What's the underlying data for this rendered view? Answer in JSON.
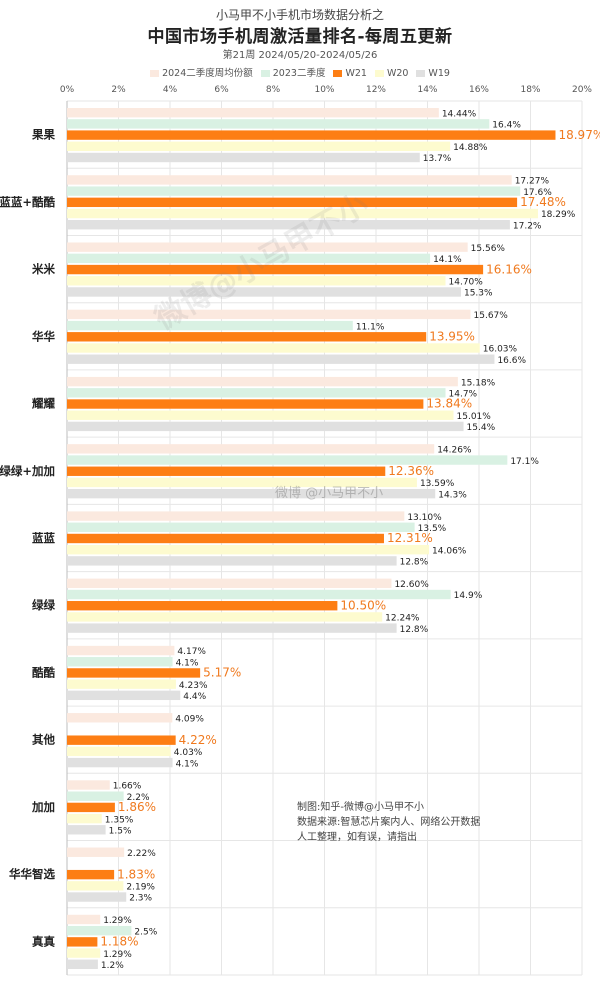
{
  "header": {
    "subtitle": "小马甲不小手机市场数据分析之",
    "title": "中国市场手机周激活量排名-每周五更新",
    "date_range": "第21周 2024/05/20-2024/05/26"
  },
  "chart_data": {
    "type": "bar",
    "orientation": "horizontal",
    "xlim": [
      0,
      20
    ],
    "x_ticks": [
      "0%",
      "2%",
      "4%",
      "6%",
      "8%",
      "10%",
      "12%",
      "14%",
      "16%",
      "18%",
      "20%"
    ],
    "grid": true,
    "legend_position": "top",
    "categories": [
      "果果",
      "蓝蓝+酷酷",
      "米米",
      "华华",
      "耀耀",
      "绿绿+加加",
      "蓝蓝",
      "绿绿",
      "酷酷",
      "其他",
      "加加",
      "华华智选",
      "真真"
    ],
    "series": [
      {
        "name": "2024二季度周均份额",
        "color": "#fbe9df",
        "values": [
          14.44,
          17.27,
          15.56,
          15.67,
          15.18,
          14.26,
          13.1,
          12.6,
          4.17,
          4.09,
          1.66,
          2.22,
          1.29
        ],
        "labels": [
          "14.44%",
          "17.27%",
          "15.56%",
          "15.67%",
          "15.18%",
          "14.26%",
          "13.10%",
          "12.60%",
          "4.17%",
          "4.09%",
          "1.66%",
          "2.22%",
          "1.29%"
        ]
      },
      {
        "name": "2023二季度",
        "color": "#d9f1e3",
        "values": [
          16.4,
          17.6,
          14.1,
          11.1,
          14.7,
          17.1,
          13.5,
          14.9,
          4.1,
          null,
          2.2,
          null,
          2.5
        ],
        "labels": [
          "16.4%",
          "17.6%",
          "14.1%",
          "11.1%",
          "14.7%",
          "17.1%",
          "13.5%",
          "14.9%",
          "4.1%",
          "",
          "2.2%",
          "",
          "2.5%"
        ]
      },
      {
        "name": "W21",
        "color": "#fd7e14",
        "values": [
          18.97,
          17.48,
          16.16,
          13.95,
          13.84,
          12.36,
          12.31,
          10.5,
          5.17,
          4.22,
          1.86,
          1.83,
          1.18
        ],
        "labels": [
          "18.97%",
          "17.48%",
          "16.16%",
          "13.95%",
          "13.84%",
          "12.36%",
          "12.31%",
          "10.50%",
          "5.17%",
          "4.22%",
          "1.86%",
          "1.83%",
          "1.18%"
        ]
      },
      {
        "name": "W20",
        "color": "#fdfbcf",
        "values": [
          14.88,
          18.29,
          14.7,
          16.03,
          15.01,
          13.59,
          14.06,
          12.24,
          4.23,
          4.03,
          1.35,
          2.19,
          1.29
        ],
        "labels": [
          "14.88%",
          "18.29%",
          "14.70%",
          "16.03%",
          "15.01%",
          "13.59%",
          "14.06%",
          "12.24%",
          "4.23%",
          "4.03%",
          "1.35%",
          "2.19%",
          "1.29%"
        ]
      },
      {
        "name": "W19",
        "color": "#e0e0e0",
        "values": [
          13.7,
          17.2,
          15.3,
          16.6,
          15.4,
          14.3,
          12.8,
          12.8,
          4.4,
          4.1,
          1.5,
          2.3,
          1.2
        ],
        "labels": [
          "13.7%",
          "17.2%",
          "15.3%",
          "16.6%",
          "15.4%",
          "14.3%",
          "12.8%",
          "12.8%",
          "4.4%",
          "4.1%",
          "1.5%",
          "2.3%",
          "1.2%"
        ]
      }
    ]
  },
  "note": {
    "line1": "制图:知乎-微博@小马甲不小",
    "line2": "数据来源:智慧芯片案内人、网络公开数据",
    "line3": "人工整理，如有误，请指出"
  },
  "watermarks": {
    "main": "微博@小马甲不小",
    "secondary": "微博 @小马甲不小"
  },
  "colors": {
    "highlight_label": "#f07a1f",
    "grid": "#e6e6e6"
  }
}
